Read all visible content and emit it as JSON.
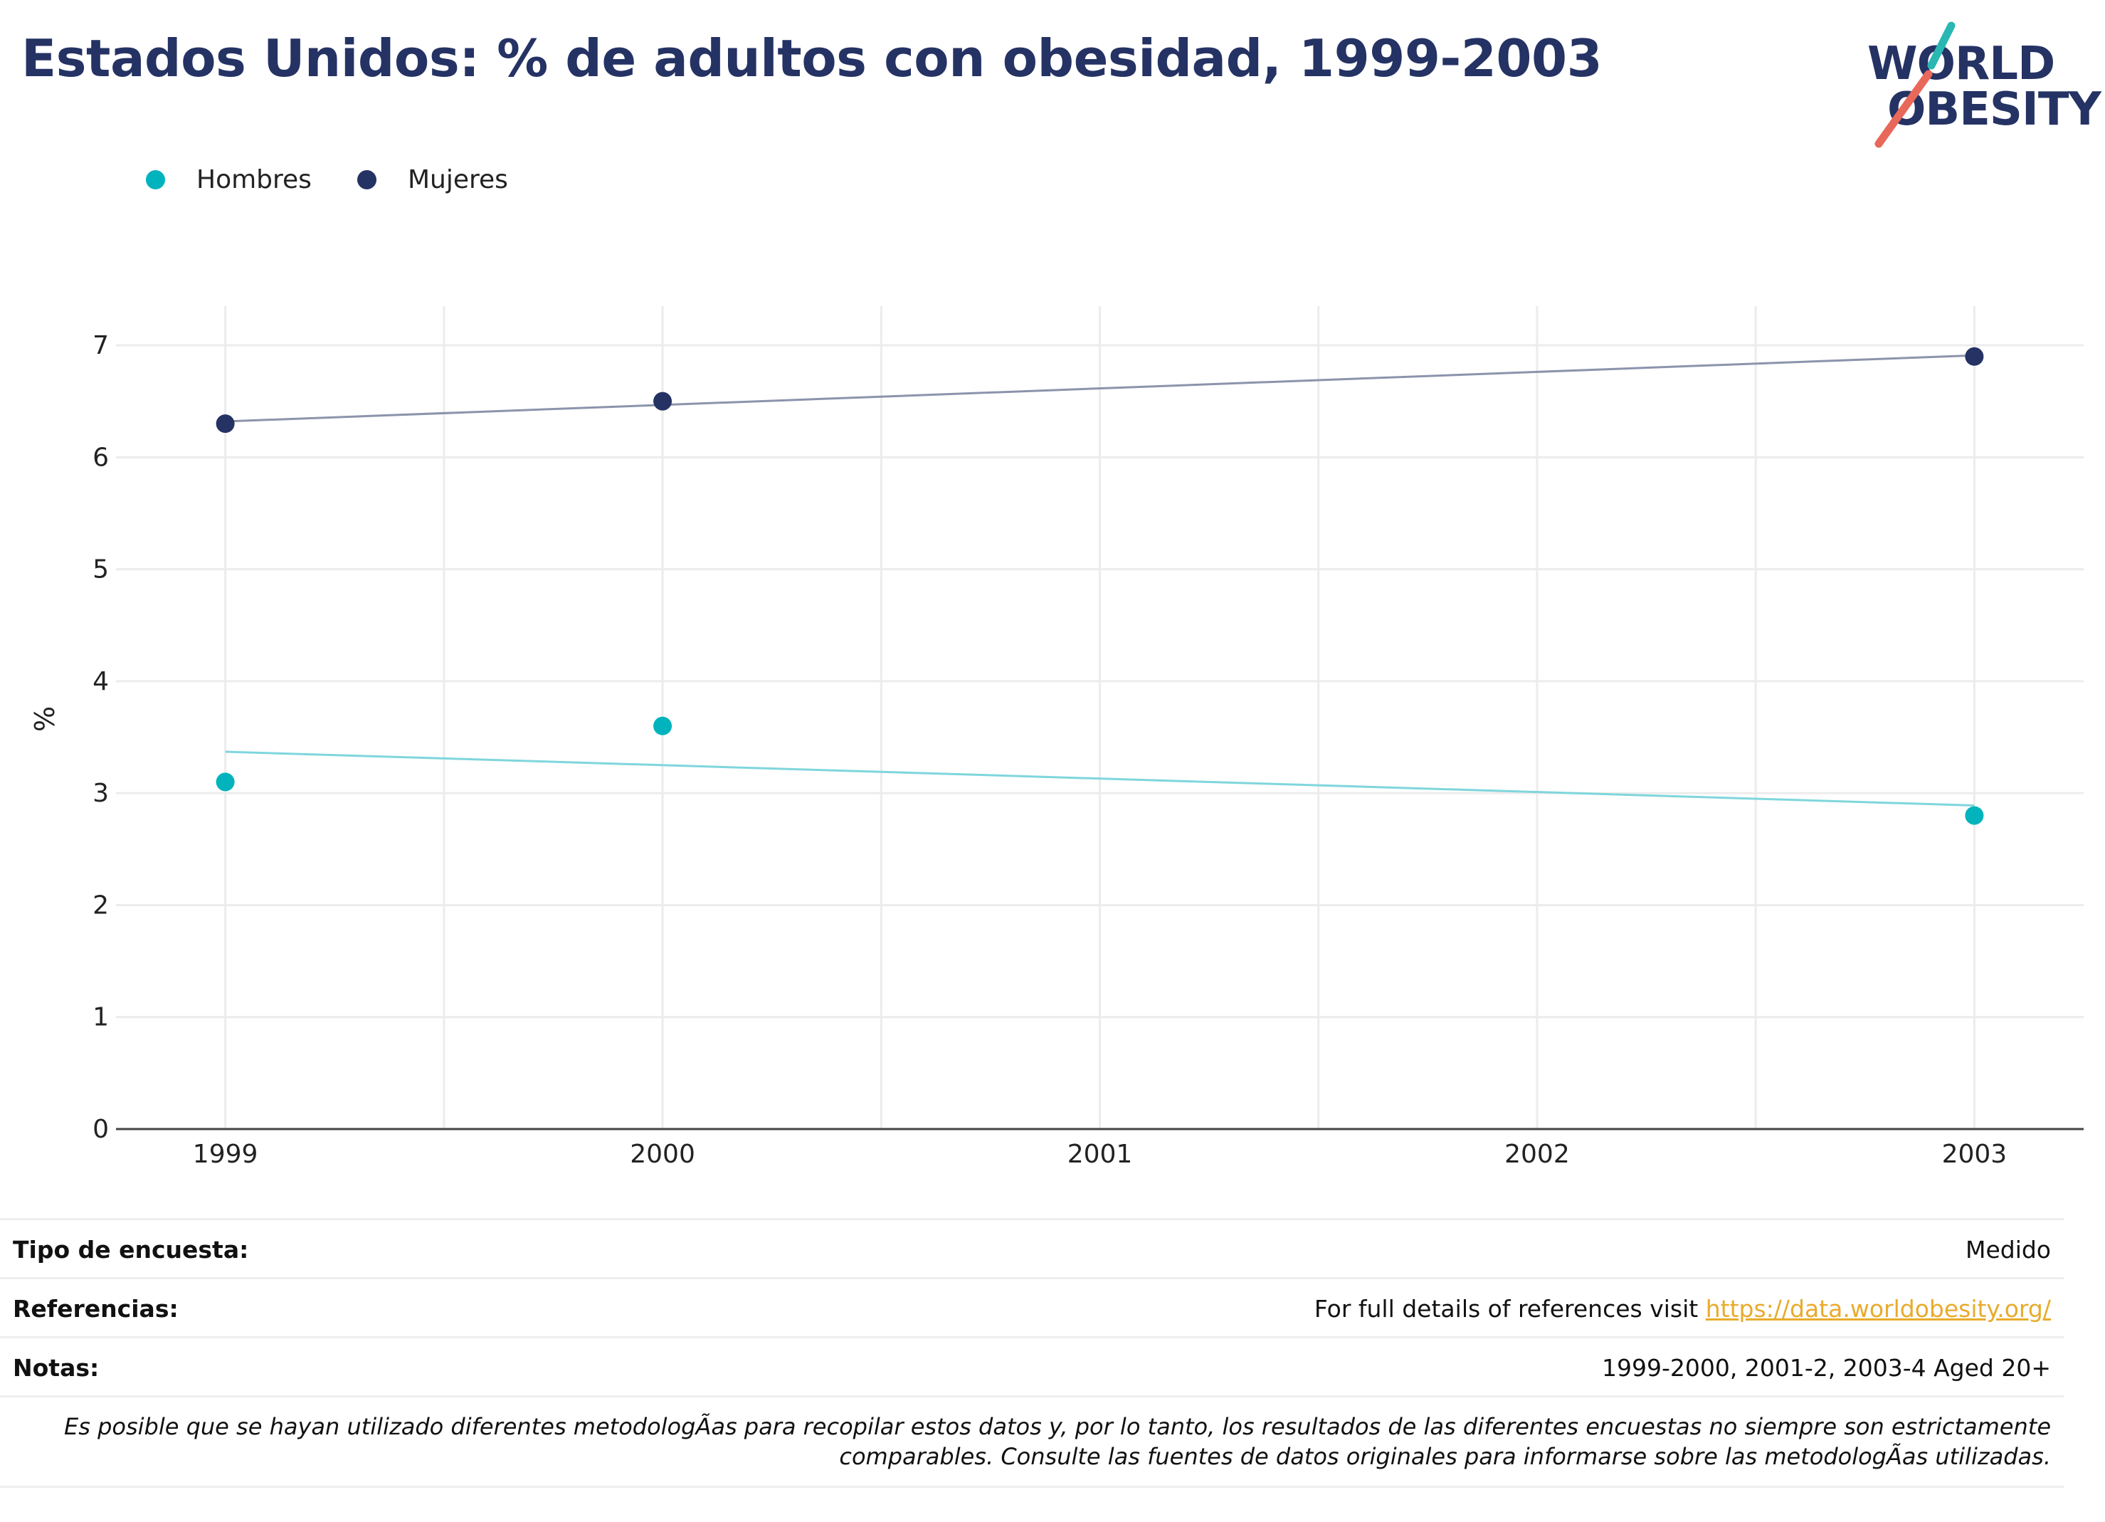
{
  "title": "Estados Unidos: % de adultos con obesidad, 1999-2003",
  "logo": {
    "line1": "WORLD",
    "line2": "OBESITY",
    "accent_teal": "#2ab7b3",
    "accent_red": "#e8685a"
  },
  "chart_data": {
    "type": "scatter",
    "ylabel": "%",
    "xlabel": "",
    "x_ticks": [
      "1999",
      "2000",
      "2001",
      "2002",
      "2003"
    ],
    "y_ticks": [
      "0",
      "1",
      "2",
      "3",
      "4",
      "5",
      "6",
      "7"
    ],
    "xlim": [
      1998.75,
      2003.25
    ],
    "ylim": [
      0,
      7.35
    ],
    "grid": true,
    "legend_position": "top-left",
    "series": [
      {
        "name": "Hombres",
        "color": "#00b3bd",
        "points": [
          {
            "x": 1999,
            "y": 3.1
          },
          {
            "x": 2000,
            "y": 3.6
          },
          {
            "x": 2003,
            "y": 2.8
          }
        ],
        "trendline": [
          {
            "x": 1999,
            "y": 3.37
          },
          {
            "x": 2003,
            "y": 2.89
          }
        ]
      },
      {
        "name": "Mujeres",
        "color": "#253264",
        "points": [
          {
            "x": 1999,
            "y": 6.3
          },
          {
            "x": 2000,
            "y": 6.5
          },
          {
            "x": 2003,
            "y": 6.9
          }
        ],
        "trendline": [
          {
            "x": 1999,
            "y": 6.32
          },
          {
            "x": 2003,
            "y": 6.91
          }
        ]
      }
    ]
  },
  "info": {
    "survey_type_label": "Tipo de encuesta:",
    "survey_type_value": "Medido",
    "references_label": "Referencias:",
    "references_text": "For full details of references visit ",
    "references_link": "https://data.worldobesity.org/",
    "notes_label": "Notas:",
    "notes_value": "1999-2000, 2001-2, 2003-4 Aged 20+",
    "disclaimer": "Es posible que se hayan utilizado diferentes metodologÃas para recopilar estos datos y, por lo tanto, los resultados de las diferentes encuestas no siempre son estrictamente comparables. Consulte las fuentes de datos originales para informarse sobre las metodologÃas utilizadas."
  }
}
